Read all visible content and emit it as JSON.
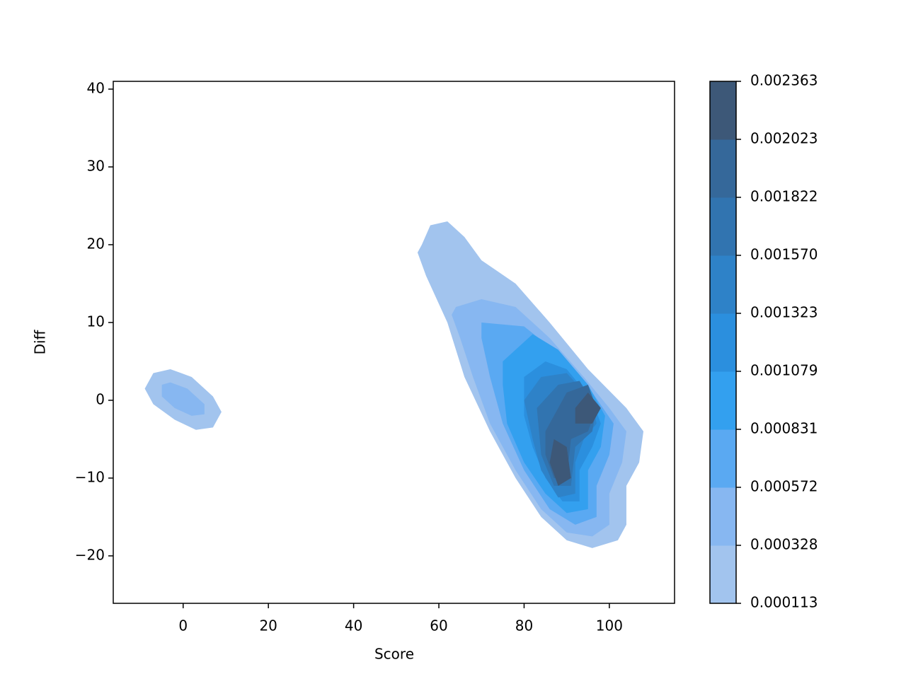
{
  "chart_data": {
    "type": "kde-contour",
    "xlabel": "Score",
    "ylabel": "Diff",
    "xlim": [
      -16.4,
      115.3
    ],
    "ylim": [
      -26.1,
      41
    ],
    "xticks": [
      0,
      20,
      40,
      60,
      80,
      100
    ],
    "yticks": [
      {
        "value": -20,
        "label": "−20"
      },
      {
        "value": -10,
        "label": "−10"
      },
      0,
      10,
      20,
      30,
      40
    ],
    "levels": [
      0.000113,
      0.000328,
      0.000572,
      0.000831,
      0.001079,
      0.001323,
      {
        "value": 0.00157,
        "label": "0.001570"
      },
      0.001822,
      0.002023,
      0.002363
    ],
    "bands": [
      {
        "color": "#a2c4ee",
        "regions": [
          {
            "x": [
              56,
              58,
              62,
              66,
              70,
              78,
              86,
              95,
              104,
              108,
              107,
              104,
              104,
              102,
              96,
              90,
              84,
              78,
              72,
              66,
              62,
              57,
              55
            ],
            "y": [
              20,
              22.5,
              23,
              21,
              18,
              15,
              10,
              4,
              -1,
              -4,
              -8,
              -11,
              -16,
              -18,
              -19,
              -18,
              -15,
              -10,
              -4,
              3,
              10,
              16,
              19
            ]
          },
          {
            "x": [
              -9,
              -7,
              -3,
              2,
              7,
              9,
              7,
              3,
              -2,
              -7
            ],
            "y": [
              1.5,
              3.5,
              4,
              3,
              0.5,
              -1.5,
              -3.5,
              -3.8,
              -2.5,
              -0.5
            ]
          }
        ]
      },
      {
        "color": "#87b7f1",
        "regions": [
          {
            "x": [
              64,
              70,
              78,
              86,
              94,
              100,
              104,
              103,
              100,
              100,
              96,
              90,
              84,
              78,
              72,
              68,
              65,
              63
            ],
            "y": [
              12,
              13,
              12,
              8,
              3,
              -1,
              -4,
              -8,
              -12,
              -16,
              -17.5,
              -17,
              -14,
              -9,
              -3,
              3,
              8,
              11
            ]
          },
          {
            "x": [
              -5,
              -3,
              1,
              5,
              5,
              2,
              -2,
              -5
            ],
            "y": [
              2,
              2.3,
              1.5,
              -0.5,
              -1.8,
              -2,
              -1,
              0.5
            ]
          }
        ]
      },
      {
        "color": "#5aa9f2",
        "regions": [
          {
            "x": [
              70,
              80,
              88,
              96,
              101,
              100,
              97,
              97,
              92,
              86,
              80,
              75,
              72,
              70
            ],
            "y": [
              10,
              9.5,
              6,
              1,
              -3,
              -7,
              -11,
              -15,
              -16,
              -14,
              -9,
              -3,
              3,
              8
            ]
          }
        ]
      },
      {
        "color": "#33a0ef",
        "regions": [
          {
            "x": [
              75,
              82,
              88,
              95,
              99,
              98,
              95,
              95,
              90,
              85,
              80,
              76,
              75
            ],
            "y": [
              5,
              8.5,
              6.5,
              2,
              -2,
              -6,
              -9,
              -14,
              -14.5,
              -12,
              -8,
              -3,
              2
            ]
          }
        ]
      },
      {
        "color": "#2b8fde",
        "regions": [
          {
            "x": [
              80,
              85,
              90,
              96,
              98,
              96,
              93,
              93,
              89,
              85,
              82,
              80
            ],
            "y": [
              3,
              5,
              4,
              0,
              -3,
              -6,
              -9,
              -13,
              -13,
              -10,
              -6,
              -2
            ]
          }
        ]
      },
      {
        "color": "#2e82c8",
        "regions": [
          {
            "x": [
              80,
              84,
              90,
              96,
              97,
              94,
              92,
              92,
              88,
              84,
              82
            ],
            "y": [
              0,
              3,
              3.5,
              0,
              -3,
              -5,
              -8,
              -12,
              -12.5,
              -9,
              -5
            ]
          }
        ]
      },
      {
        "color": "#3174b0",
        "regions": [
          {
            "x": [
              83,
              88,
              93,
              97,
              96,
              92,
              91,
              87,
              84
            ],
            "y": [
              -1,
              2,
              2.5,
              -1,
              -4,
              -6,
              -11,
              -11,
              -7
            ]
          }
        ]
      },
      {
        "color": "#35689a",
        "regions": [
          {
            "x": [
              85,
              90,
              95,
              97,
              95,
              91,
              90,
              87,
              85
            ],
            "y": [
              -4,
              1,
              2,
              -1,
              -4,
              -5,
              -10,
              -10,
              -7
            ]
          }
        ]
      },
      {
        "color": "#3d5878",
        "regions": [
          {
            "x": [
              92,
              95,
              98,
              96,
              92
            ],
            "y": [
              -1,
              1,
              -1,
              -3,
              -3
            ]
          },
          {
            "x": [
              87,
              90,
              91,
              88,
              86
            ],
            "y": [
              -5,
              -6,
              -10,
              -11,
              -8
            ]
          }
        ]
      }
    ]
  }
}
